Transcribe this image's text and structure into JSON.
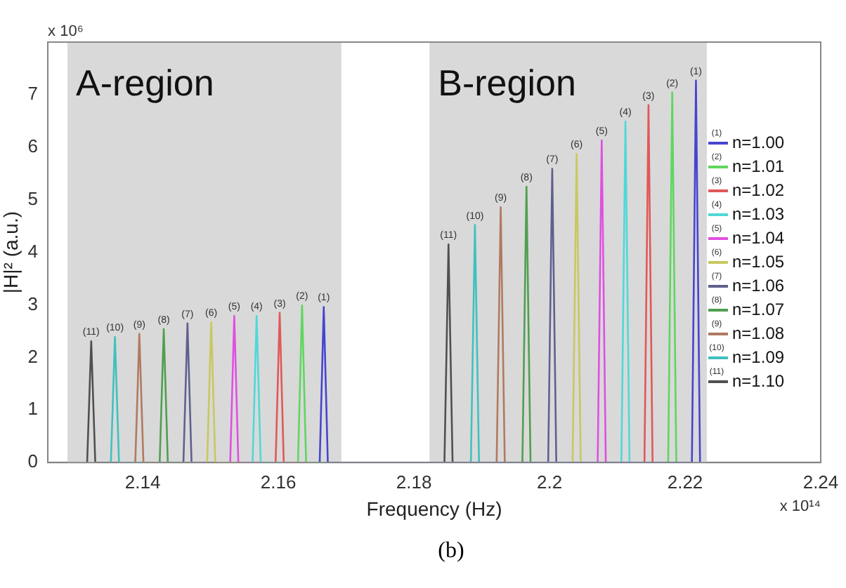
{
  "chart_data": {
    "type": "line",
    "xlabel": "Frequency (Hz)",
    "ylabel": "|H|² (a.u.)",
    "xlim": [
      2.126,
      2.24
    ],
    "xticks": [
      2.14,
      2.16,
      2.18,
      2.2,
      2.22,
      2.24
    ],
    "ylim": [
      0,
      8
    ],
    "yticks": [
      0,
      1,
      2,
      3,
      4,
      5,
      6,
      7
    ],
    "grid": false,
    "legend": "right",
    "marker": "none",
    "line_style": "solid",
    "bands": [
      {
        "axis": "x",
        "from": 2.1289,
        "to": 2.1693,
        "label": "A-region",
        "color": "#d9d9d9"
      },
      {
        "axis": "x",
        "from": 2.1823,
        "to": 2.2232,
        "label": "B-region",
        "color": "#d9d9d9"
      }
    ],
    "series": [
      {
        "name": "n=1.00",
        "color": "#4545d0",
        "x": [
          2.1661,
          2.1667,
          2.1673,
          2.221,
          2.2216,
          2.2222
        ],
        "values": [
          0,
          2.96,
          0,
          0,
          7.27,
          0
        ]
      },
      {
        "name": "n=1.01",
        "color": "#5fd65f",
        "x": [
          2.1629,
          2.1635,
          2.1641,
          2.2175,
          2.2181,
          2.2187
        ],
        "values": [
          0,
          2.99,
          0,
          0,
          7.04,
          0
        ]
      },
      {
        "name": "n=1.02",
        "color": "#e05858",
        "x": [
          2.1596,
          2.1602,
          2.1608,
          2.214,
          2.2146,
          2.2152
        ],
        "values": [
          0,
          2.85,
          0,
          0,
          6.8,
          0
        ]
      },
      {
        "name": "n=1.03",
        "color": "#4fd8d8",
        "x": [
          2.1562,
          2.1568,
          2.1574,
          2.2106,
          2.2112,
          2.2118
        ],
        "values": [
          0,
          2.79,
          0,
          0,
          6.49,
          0
        ]
      },
      {
        "name": "n=1.04",
        "color": "#e050e0",
        "x": [
          2.1529,
          2.1535,
          2.1541,
          2.2071,
          2.2077,
          2.2083
        ],
        "values": [
          0,
          2.79,
          0,
          0,
          6.13,
          0
        ]
      },
      {
        "name": "n=1.05",
        "color": "#c8c860",
        "x": [
          2.1495,
          2.1501,
          2.1507,
          2.2034,
          2.204,
          2.2046
        ],
        "values": [
          0,
          2.67,
          0,
          0,
          5.87,
          0
        ]
      },
      {
        "name": "n=1.06",
        "color": "#60608f",
        "x": [
          2.146,
          2.1466,
          2.1472,
          2.1998,
          2.2004,
          2.201
        ],
        "values": [
          0,
          2.65,
          0,
          0,
          5.59,
          0
        ]
      },
      {
        "name": "n=1.07",
        "color": "#4f9f4f",
        "x": [
          2.1425,
          2.1431,
          2.1437,
          2.196,
          2.1966,
          2.1972
        ],
        "values": [
          0,
          2.54,
          0,
          0,
          5.25,
          0
        ]
      },
      {
        "name": "n=1.08",
        "color": "#b07a60",
        "x": [
          2.1389,
          2.1395,
          2.1401,
          2.1922,
          2.1928,
          2.1934
        ],
        "values": [
          0,
          2.45,
          0,
          0,
          4.86,
          0
        ]
      },
      {
        "name": "n=1.09",
        "color": "#40c0c0",
        "x": [
          2.1353,
          2.1359,
          2.1365,
          2.1884,
          2.189,
          2.1896
        ],
        "values": [
          0,
          2.39,
          0,
          0,
          4.52,
          0
        ]
      },
      {
        "name": "n=1.10",
        "color": "#505050",
        "x": [
          2.1318,
          2.1324,
          2.133,
          2.1845,
          2.1851,
          2.1857
        ],
        "values": [
          0,
          2.31,
          0,
          0,
          4.15,
          0
        ]
      }
    ],
    "annotations": [
      {
        "text": "(1)",
        "x": 2.1667,
        "y": 2.96
      },
      {
        "text": "(2)",
        "x": 2.1635,
        "y": 2.99
      },
      {
        "text": "(3)",
        "x": 2.1602,
        "y": 2.85
      },
      {
        "text": "(4)",
        "x": 2.1568,
        "y": 2.79
      },
      {
        "text": "(5)",
        "x": 2.1535,
        "y": 2.79
      },
      {
        "text": "(6)",
        "x": 2.1501,
        "y": 2.67
      },
      {
        "text": "(7)",
        "x": 2.1466,
        "y": 2.65
      },
      {
        "text": "(8)",
        "x": 2.1431,
        "y": 2.54
      },
      {
        "text": "(9)",
        "x": 2.1395,
        "y": 2.45
      },
      {
        "text": "(10)",
        "x": 2.1359,
        "y": 2.39
      },
      {
        "text": "(11)",
        "x": 2.1324,
        "y": 2.31
      },
      {
        "text": "(1)",
        "x": 2.2216,
        "y": 7.27
      },
      {
        "text": "(2)",
        "x": 2.2181,
        "y": 7.04
      },
      {
        "text": "(3)",
        "x": 2.2146,
        "y": 6.8
      },
      {
        "text": "(4)",
        "x": 2.2112,
        "y": 6.49
      },
      {
        "text": "(5)",
        "x": 2.2077,
        "y": 6.13
      },
      {
        "text": "(6)",
        "x": 2.204,
        "y": 5.87
      },
      {
        "text": "(7)",
        "x": 2.2004,
        "y": 5.59
      },
      {
        "text": "(8)",
        "x": 2.1966,
        "y": 5.25
      },
      {
        "text": "(9)",
        "x": 2.1928,
        "y": 4.86
      },
      {
        "text": "(10)",
        "x": 2.189,
        "y": 4.52
      },
      {
        "text": "(11)",
        "x": 2.1851,
        "y": 4.15
      },
      "x 10⁶",
      "x 10¹⁴",
      "(b)"
    ]
  }
}
